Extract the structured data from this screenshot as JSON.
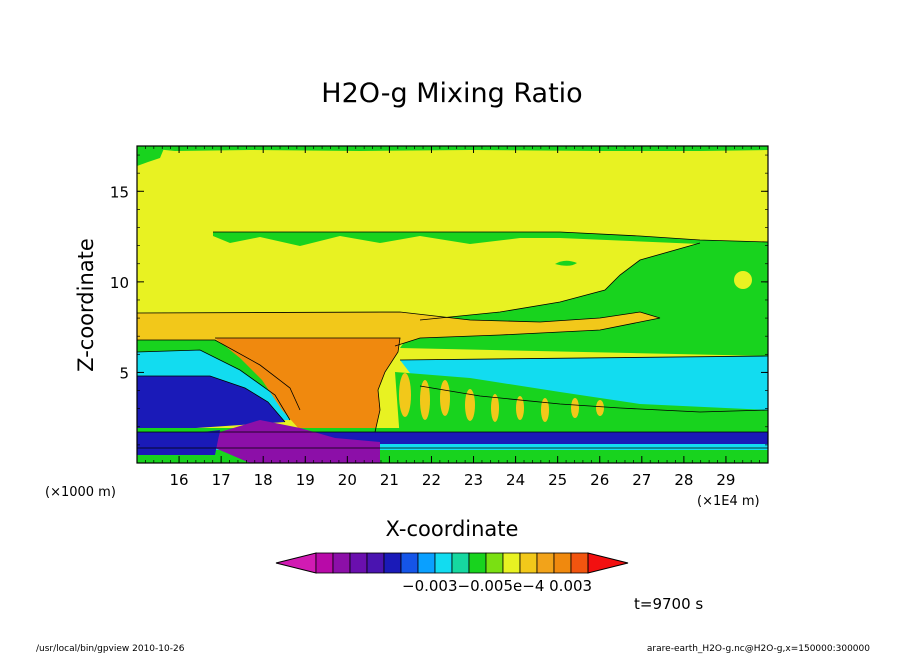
{
  "chart_data": {
    "type": "heatmap",
    "title": "H2O-g Mixing Ratio",
    "xlabel": "X-coordinate",
    "ylabel": "Z-coordinate",
    "x_ticks": [
      "16",
      "17",
      "18",
      "19",
      "20",
      "21",
      "22",
      "23",
      "24",
      "25",
      "26",
      "27",
      "28",
      "29"
    ],
    "x_tick_values": [
      16,
      17,
      18,
      19,
      20,
      21,
      22,
      23,
      24,
      25,
      26,
      27,
      28,
      29
    ],
    "y_ticks": [
      "5",
      "10",
      "15"
    ],
    "y_tick_values": [
      5,
      10,
      15
    ],
    "xlim": [
      15.0,
      30.0
    ],
    "ylim": [
      0.0,
      17.5
    ],
    "x_scale_left": "(×1000 m)",
    "x_scale_right": "(×1E4 m)",
    "time_label": "t=9700 s",
    "colorbar": {
      "colors": [
        "#d11bb3",
        "#b80aa8",
        "#8c0fa8",
        "#6a0fae",
        "#4a14b0",
        "#1a1ab8",
        "#1555e8",
        "#0aa0ff",
        "#12dcf0",
        "#16d8a0",
        "#18d31e",
        "#7ae012",
        "#e8f222",
        "#f2c81a",
        "#f2a31a",
        "#f0890e",
        "#f2550f",
        "#f21010"
      ],
      "labels": [
        "-0.003",
        "-0.005e-4",
        "0.003"
      ],
      "label_text": "−0.003−0.005e−4   0.003"
    },
    "regions": [
      {
        "name": "bottom-purple",
        "color": "#8c0fa8"
      },
      {
        "name": "blue-band",
        "color": "#1a1ab8"
      },
      {
        "name": "cyan-layer",
        "color": "#12dcf0"
      },
      {
        "name": "green-layer",
        "color": "#18d31e"
      },
      {
        "name": "yellow-upper",
        "color": "#e8f222"
      },
      {
        "name": "orange-plume",
        "color": "#f0890e"
      },
      {
        "name": "light-orange-band",
        "color": "#f2c81a"
      }
    ]
  },
  "footer": {
    "left": "/usr/local/bin/gpview  2010-10-26",
    "right": "arare-earth_H2O-g.nc@H2O-g,x=150000:300000"
  }
}
